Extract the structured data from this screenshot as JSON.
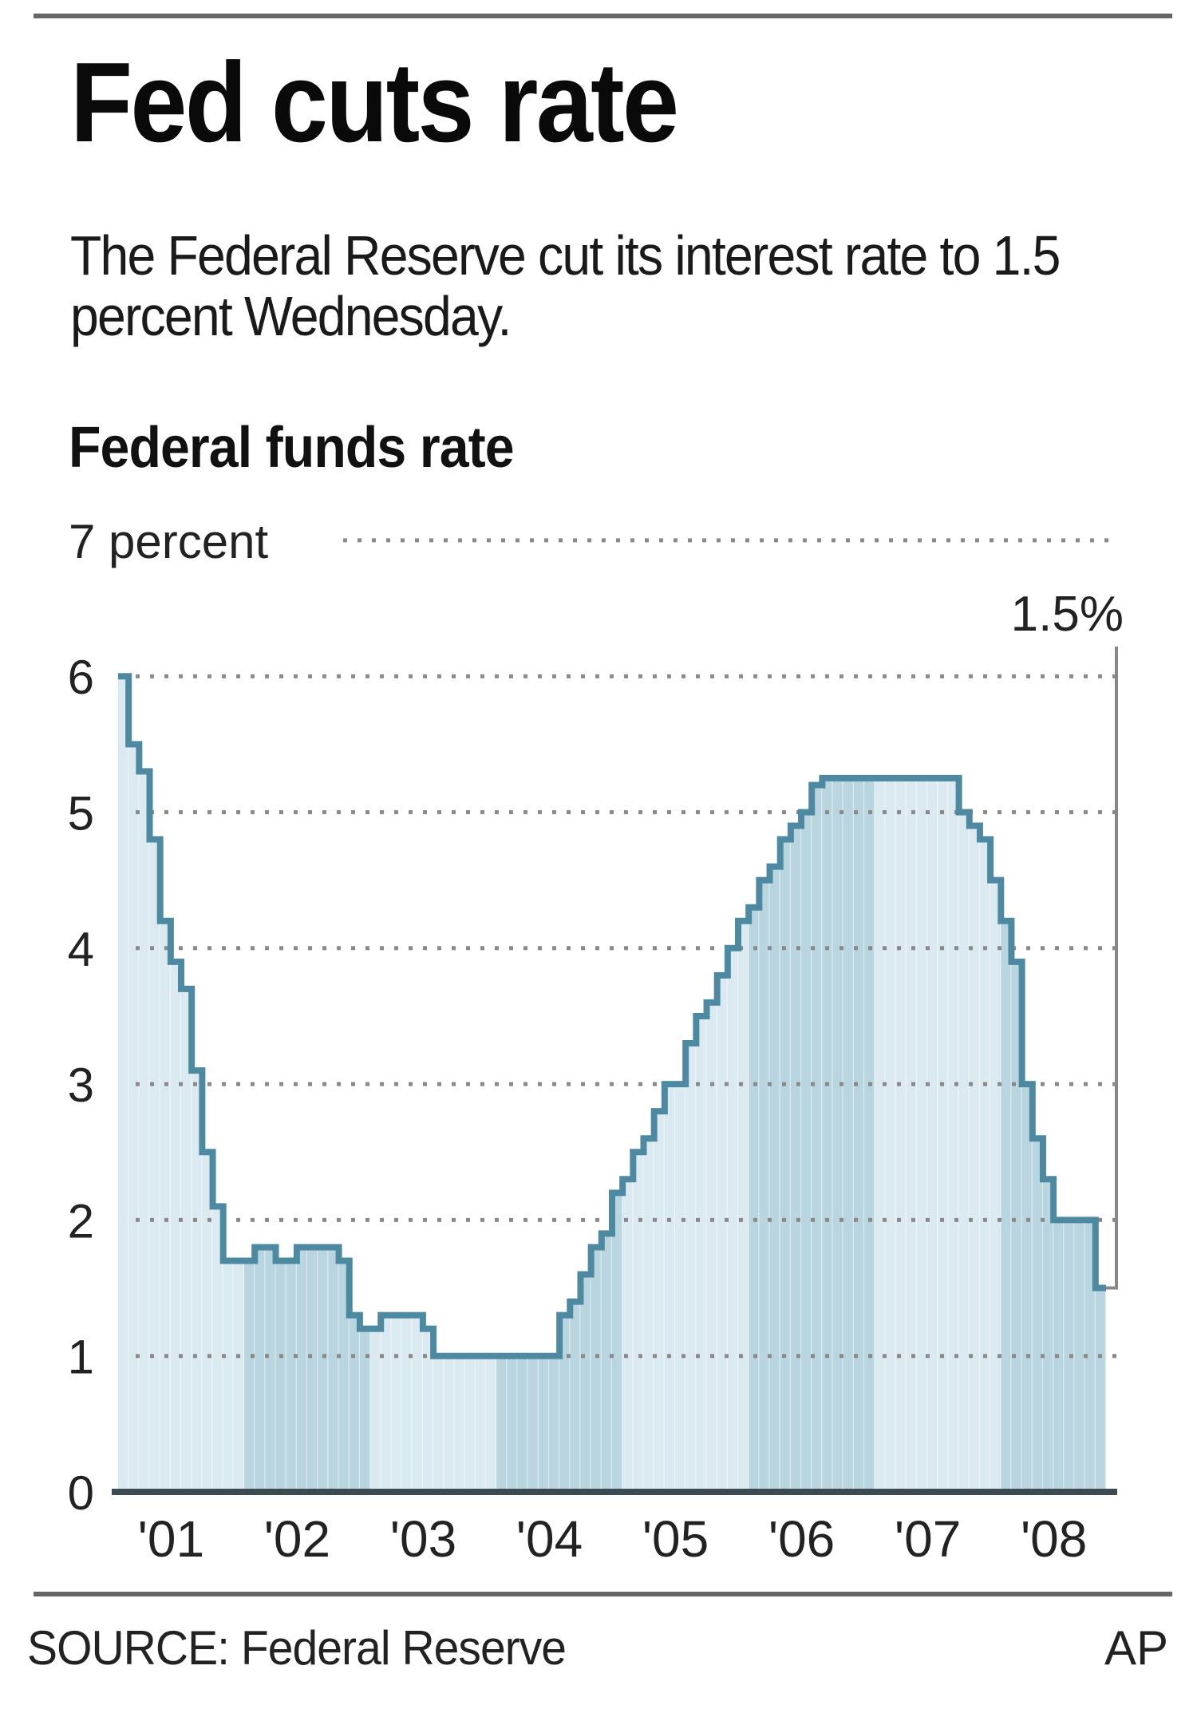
{
  "headline": "Fed cuts rate",
  "subtitle": "The Federal Reserve cut its interest rate to 1.5 percent Wednesday.",
  "source": "SOURCE: Federal Reserve",
  "credit": "AP",
  "colors": {
    "line": "#4e89a2",
    "fill_light": "#dbeaf0",
    "fill_dark": "#b9d5e0",
    "grid": "#8a8a8a",
    "axis": "#3c4a52"
  },
  "chart_data": {
    "type": "area",
    "title": "Federal funds rate",
    "xlabel": "",
    "ylabel": "percent",
    "ylim": [
      0,
      7
    ],
    "y_ticks": [
      0,
      1,
      2,
      3,
      4,
      5,
      6,
      7
    ],
    "y_tick_labels": [
      "0",
      "1",
      "2",
      "3",
      "4",
      "5",
      "6",
      "7 percent"
    ],
    "x_tick_labels": [
      "'01",
      "'02",
      "'03",
      "'04",
      "'05",
      "'06",
      "'07",
      "'08"
    ],
    "grid": true,
    "start": "2001-01",
    "frequency": "monthly",
    "annotation": {
      "text": "1.5%",
      "value": 1.5
    },
    "series": [
      {
        "name": "Federal funds rate",
        "values": [
          6.0,
          5.5,
          5.3,
          4.8,
          4.2,
          3.9,
          3.7,
          3.1,
          2.5,
          2.1,
          1.7,
          1.7,
          1.7,
          1.8,
          1.8,
          1.7,
          1.7,
          1.8,
          1.8,
          1.8,
          1.8,
          1.7,
          1.3,
          1.2,
          1.2,
          1.3,
          1.3,
          1.3,
          1.3,
          1.2,
          1.0,
          1.0,
          1.0,
          1.0,
          1.0,
          1.0,
          1.0,
          1.0,
          1.0,
          1.0,
          1.0,
          1.0,
          1.3,
          1.4,
          1.6,
          1.8,
          1.9,
          2.2,
          2.3,
          2.5,
          2.6,
          2.8,
          3.0,
          3.0,
          3.3,
          3.5,
          3.6,
          3.8,
          4.0,
          4.2,
          4.3,
          4.5,
          4.6,
          4.8,
          4.9,
          5.0,
          5.2,
          5.25,
          5.25,
          5.25,
          5.25,
          5.25,
          5.25,
          5.25,
          5.25,
          5.25,
          5.25,
          5.25,
          5.25,
          5.25,
          5.0,
          4.9,
          4.8,
          4.5,
          4.2,
          3.9,
          3.0,
          2.6,
          2.3,
          2.0,
          2.0,
          2.0,
          2.0,
          1.5
        ]
      }
    ]
  }
}
